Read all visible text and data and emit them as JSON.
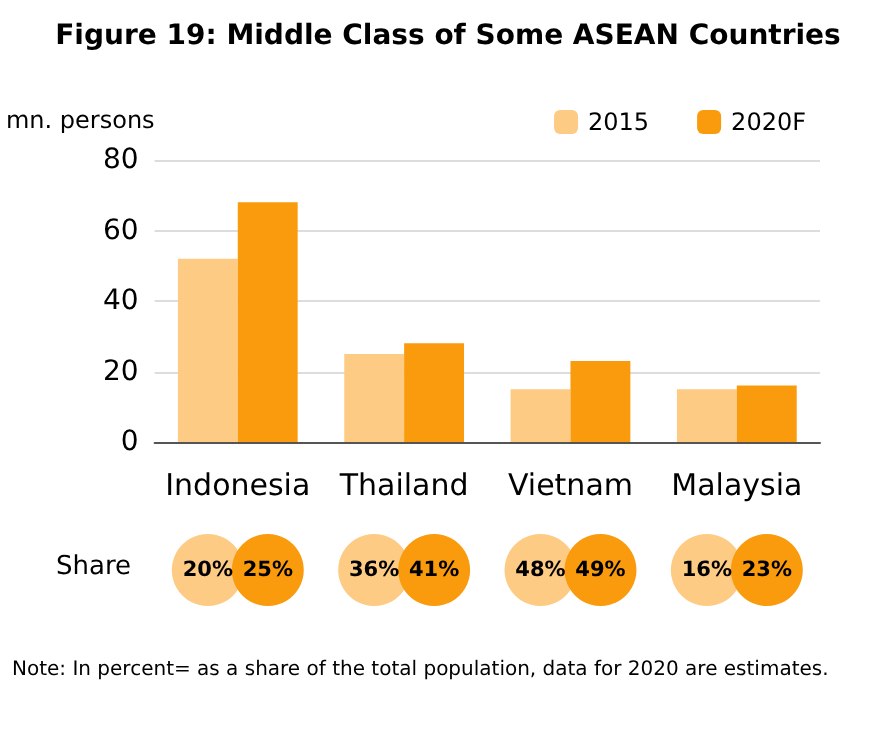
{
  "chart_data": {
    "type": "bar",
    "title": "Figure 19: Middle Class of Some ASEAN Countries",
    "ylabel": "mn. persons",
    "categories": [
      "Indonesia",
      "Thailand",
      "Vietnam",
      "Malaysia"
    ],
    "series": [
      {
        "name": "2015",
        "color": "#fdcb84",
        "values": [
          52,
          25,
          15,
          15
        ]
      },
      {
        "name": "2020F",
        "color": "#f99b0c",
        "values": [
          68,
          28,
          23,
          16
        ]
      }
    ],
    "ylim": [
      0,
      80
    ],
    "yticks": [
      0,
      20,
      40,
      60,
      80
    ],
    "grid": "y",
    "legend": "top right",
    "annotations": [
      "Share",
      "20%",
      "25%",
      "36%",
      "41%",
      "48%",
      "49%",
      "16%",
      "23%",
      "Note: In percent= as a share of the total population, data for 2020 are estimates."
    ]
  }
}
